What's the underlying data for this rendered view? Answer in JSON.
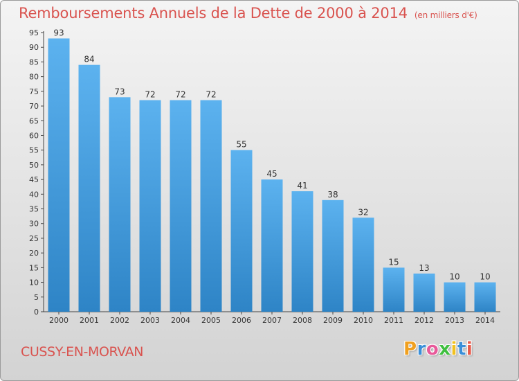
{
  "header": {
    "title": "Remboursements Annuels de la Dette de 2000 à 2014",
    "unit": "(en milliers d'€)"
  },
  "footer": {
    "commune": "CUSSY-EN-MORVAN",
    "brand": "Proxiti",
    "brand_colors": [
      "#f0a020",
      "#3a8fd8",
      "#e85a9a",
      "#3fbf3f",
      "#f0c020",
      "#3a8fd8",
      "#e85a4a"
    ]
  },
  "colors": {
    "title": "#d9534f",
    "bar_light": "#5cb2ef",
    "bar_dark": "#2e84c6"
  },
  "chart_data": {
    "type": "bar",
    "title": "Remboursements Annuels de la Dette de 2000 à 2014",
    "categories": [
      "2000",
      "2001",
      "2002",
      "2003",
      "2004",
      "2005",
      "2006",
      "2007",
      "2008",
      "2009",
      "2010",
      "2011",
      "2012",
      "2013",
      "2014"
    ],
    "values": [
      93,
      84,
      73,
      72,
      72,
      72,
      55,
      45,
      41,
      38,
      32,
      15,
      13,
      10,
      10
    ],
    "ylim": [
      0,
      95
    ],
    "yticks": [
      0,
      5,
      10,
      15,
      20,
      25,
      30,
      35,
      40,
      45,
      50,
      55,
      60,
      65,
      70,
      75,
      80,
      85,
      90,
      95
    ],
    "grid": false,
    "legend": "none"
  }
}
